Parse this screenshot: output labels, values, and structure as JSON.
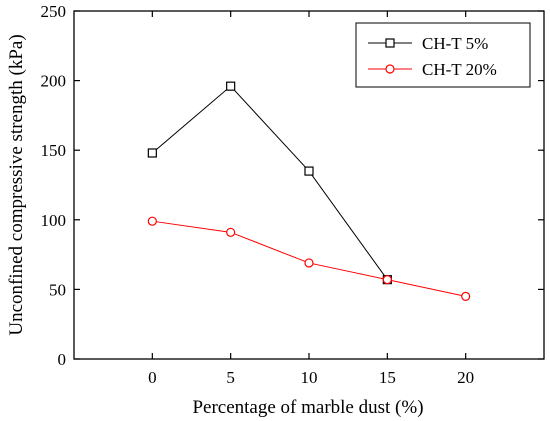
{
  "chart_data": {
    "type": "line",
    "xlabel": "Percentage of marble dust (%)",
    "ylabel": "Unconfined compressive strength (kPa)",
    "x": [
      0,
      5,
      10,
      15,
      20
    ],
    "xlim": [
      -5,
      25
    ],
    "ylim": [
      0,
      250
    ],
    "x_ticks": [
      "0",
      "5",
      "10",
      "15",
      "20"
    ],
    "y_ticks": [
      "0",
      "50",
      "100",
      "150",
      "200",
      "250"
    ],
    "legend_position": "top-right",
    "grid": false,
    "series": [
      {
        "name": "CH-T 5%",
        "values": [
          148,
          196,
          135,
          57,
          null
        ],
        "color": "#000000",
        "marker": "square"
      },
      {
        "name": "CH-T 20%",
        "values": [
          99,
          91,
          69,
          57,
          45
        ],
        "color": "#ff0000",
        "marker": "circle"
      }
    ]
  }
}
